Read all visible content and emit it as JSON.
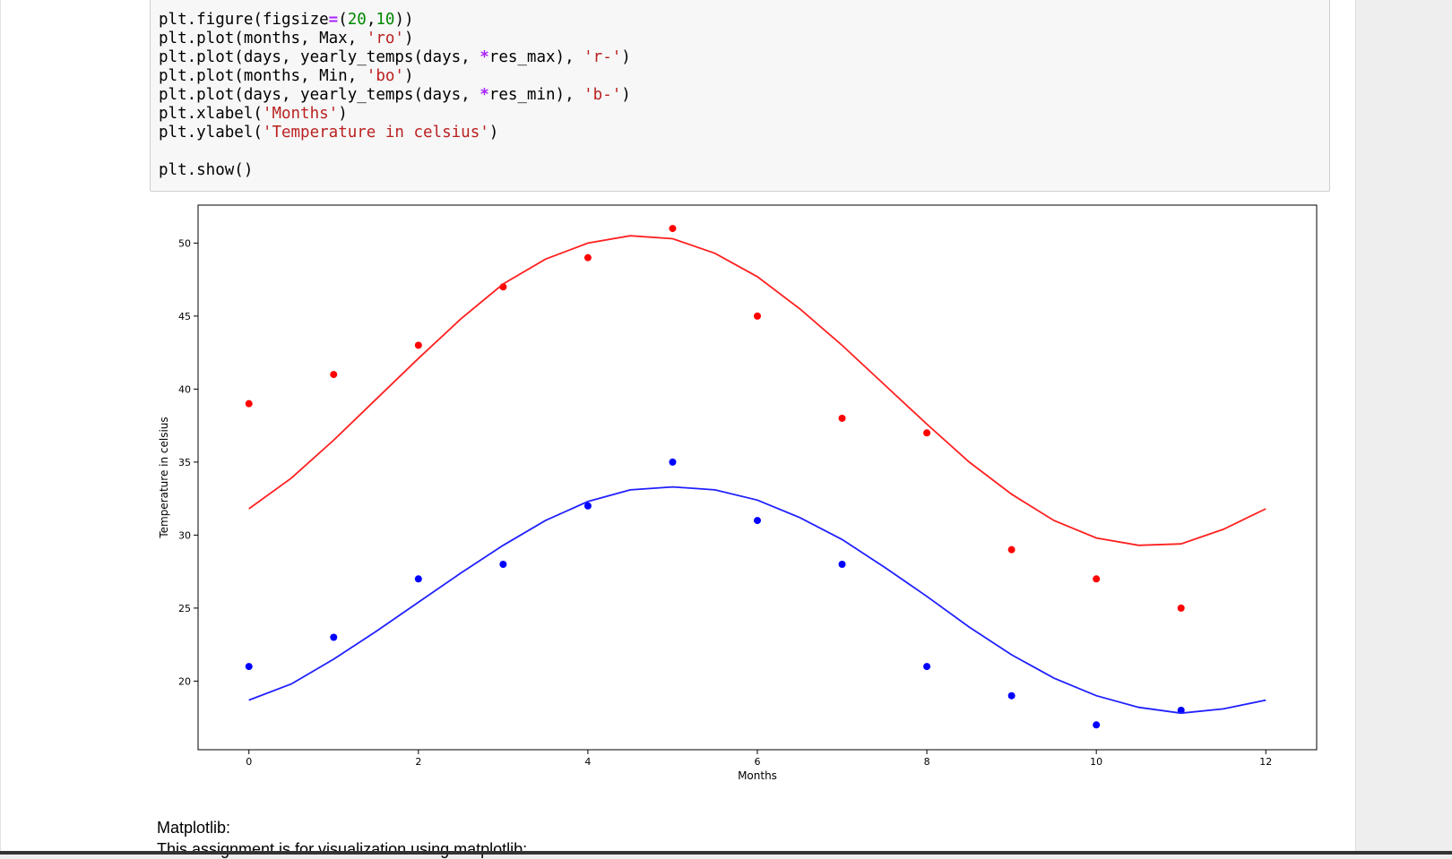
{
  "code_cell": {
    "lines": [
      [
        {
          "t": "plt.figure(figsize"
        },
        {
          "t": "=",
          "c": "c-eq"
        },
        {
          "t": "("
        },
        {
          "t": "20",
          "c": "c-num"
        },
        {
          "t": ","
        },
        {
          "t": "10",
          "c": "c-num"
        },
        {
          "t": "))"
        }
      ],
      [
        {
          "t": "plt.plot(months, Max, "
        },
        {
          "t": "'ro'",
          "c": "c-str"
        },
        {
          "t": ")"
        }
      ],
      [
        {
          "t": "plt.plot(days, yearly_temps(days, "
        },
        {
          "t": "*",
          "c": "c-star"
        },
        {
          "t": "res_max), "
        },
        {
          "t": "'r-'",
          "c": "c-str"
        },
        {
          "t": ")"
        }
      ],
      [
        {
          "t": "plt.plot(months, Min, "
        },
        {
          "t": "'bo'",
          "c": "c-str"
        },
        {
          "t": ")"
        }
      ],
      [
        {
          "t": "plt.plot(days, yearly_temps(days, "
        },
        {
          "t": "*",
          "c": "c-star"
        },
        {
          "t": "res_min), "
        },
        {
          "t": "'b-'",
          "c": "c-str"
        },
        {
          "t": ")"
        }
      ],
      [
        {
          "t": "plt.xlabel("
        },
        {
          "t": "'Months'",
          "c": "c-str"
        },
        {
          "t": ")"
        }
      ],
      [
        {
          "t": "plt.ylabel("
        },
        {
          "t": "'Temperature in celsius'",
          "c": "c-str"
        },
        {
          "t": ")"
        }
      ],
      [
        {
          "t": ""
        }
      ],
      [
        {
          "t": "plt.show()"
        }
      ]
    ]
  },
  "markdown": {
    "title": "Matplotlib:",
    "subtitle": "This assignment is for visualization using matplotlib:"
  },
  "chart_data": {
    "type": "scatter",
    "xlabel": "Months",
    "ylabel": "Temperature in celsius",
    "xlim": [
      -0.6,
      12.6
    ],
    "ylim": [
      15.3,
      52.6
    ],
    "xticks": [
      0,
      2,
      4,
      6,
      8,
      10,
      12
    ],
    "yticks": [
      20,
      25,
      30,
      35,
      40,
      45,
      50
    ],
    "grid": false,
    "series": [
      {
        "kind": "points",
        "color": "#ff0000",
        "x": [
          0,
          1,
          2,
          3,
          4,
          5,
          6,
          7,
          8,
          9,
          10,
          11
        ],
        "y": [
          39,
          41,
          43,
          47,
          49,
          51,
          45,
          38,
          37,
          29,
          27,
          25
        ]
      },
      {
        "kind": "curve",
        "color": "#ff2020",
        "x": [
          0,
          0.5,
          1,
          1.5,
          2,
          2.5,
          3,
          3.5,
          4,
          4.5,
          5,
          5.5,
          6,
          6.5,
          7,
          7.5,
          8,
          8.5,
          9,
          9.5,
          10,
          10.5,
          11,
          11.5,
          12
        ],
        "y": [
          31.8,
          33.9,
          36.5,
          39.3,
          42.1,
          44.8,
          47.2,
          48.9,
          50.0,
          50.5,
          50.3,
          49.3,
          47.7,
          45.5,
          43.0,
          40.3,
          37.6,
          35.0,
          32.8,
          31.0,
          29.8,
          29.3,
          29.4,
          30.4,
          31.8
        ]
      },
      {
        "kind": "points",
        "color": "#0000ff",
        "x": [
          0,
          1,
          2,
          3,
          4,
          5,
          6,
          7,
          8,
          9,
          10,
          11
        ],
        "y": [
          21,
          23,
          27,
          28,
          32,
          35,
          31,
          28,
          21,
          19,
          17,
          18
        ]
      },
      {
        "kind": "curve",
        "color": "#2020ff",
        "x": [
          0,
          0.5,
          1,
          1.5,
          2,
          2.5,
          3,
          3.5,
          4,
          4.5,
          5,
          5.5,
          6,
          6.5,
          7,
          7.5,
          8,
          8.5,
          9,
          9.5,
          10,
          10.5,
          11,
          11.5,
          12
        ],
        "y": [
          18.7,
          19.8,
          21.5,
          23.4,
          25.4,
          27.4,
          29.3,
          31.0,
          32.3,
          33.1,
          33.3,
          33.1,
          32.4,
          31.2,
          29.7,
          27.8,
          25.8,
          23.7,
          21.8,
          20.2,
          19.0,
          18.2,
          17.8,
          18.1,
          18.7
        ]
      }
    ]
  }
}
